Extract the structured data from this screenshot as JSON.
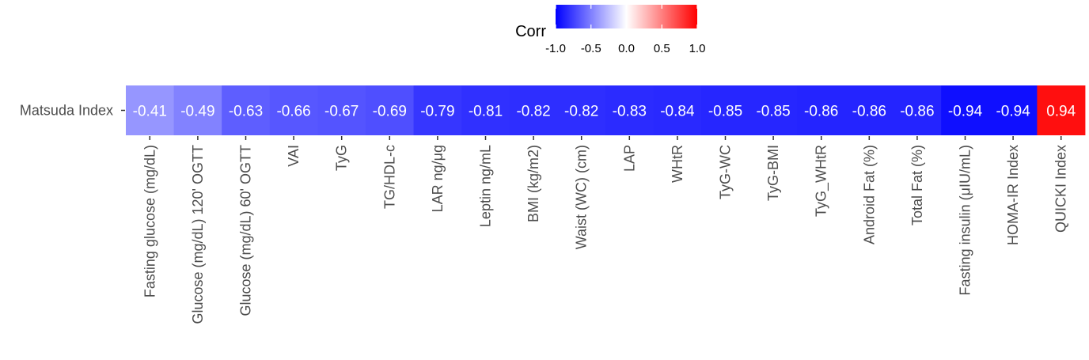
{
  "chart_data": {
    "type": "heatmap",
    "rows": [
      "Matsuda Index"
    ],
    "columns": [
      "Fasting glucose (mg/dL)",
      "Glucose (mg/dL) 120' OGTT",
      "Glucose (mg/dL) 60' OGTT",
      "VAI",
      "TyG",
      "TG/HDL-c",
      "LAR ng/μg",
      "Leptin ng/mL",
      "BMI (kg/m2)",
      "Waist (WC) (cm)",
      "LAP",
      "WHtR",
      "TyG-WC",
      "TyG-BMI",
      "TyG_WHtR",
      "Android Fat (%)",
      "Total Fat (%)",
      "Fasting insulin (μIU/mL)",
      "HOMA-IR Index",
      "QUICKI Index"
    ],
    "values": [
      -0.41,
      -0.49,
      -0.63,
      -0.66,
      -0.67,
      -0.69,
      -0.79,
      -0.81,
      -0.82,
      -0.82,
      -0.83,
      -0.84,
      -0.85,
      -0.85,
      -0.86,
      -0.86,
      -0.86,
      -0.94,
      -0.94,
      0.94
    ],
    "value_labels": [
      "-0.41",
      "-0.49",
      "-0.63",
      "-0.66",
      "-0.67",
      "-0.69",
      "-0.79",
      "-0.81",
      "-0.82",
      "-0.82",
      "-0.83",
      "-0.84",
      "-0.85",
      "-0.85",
      "-0.86",
      "-0.86",
      "-0.86",
      "-0.94",
      "-0.94",
      "0.94"
    ],
    "legend": {
      "title": "Corr",
      "ticks": [
        "-1.0",
        "-0.5",
        "0.0",
        "0.5",
        "1.0"
      ],
      "tick_values": [
        -1.0,
        -0.5,
        0.0,
        0.5,
        1.0
      ],
      "range": [
        -1,
        1
      ],
      "placement": "top"
    },
    "colors": {
      "low": "#0000ff",
      "mid": "#ffffff",
      "high": "#ff0000"
    },
    "grid": false
  }
}
